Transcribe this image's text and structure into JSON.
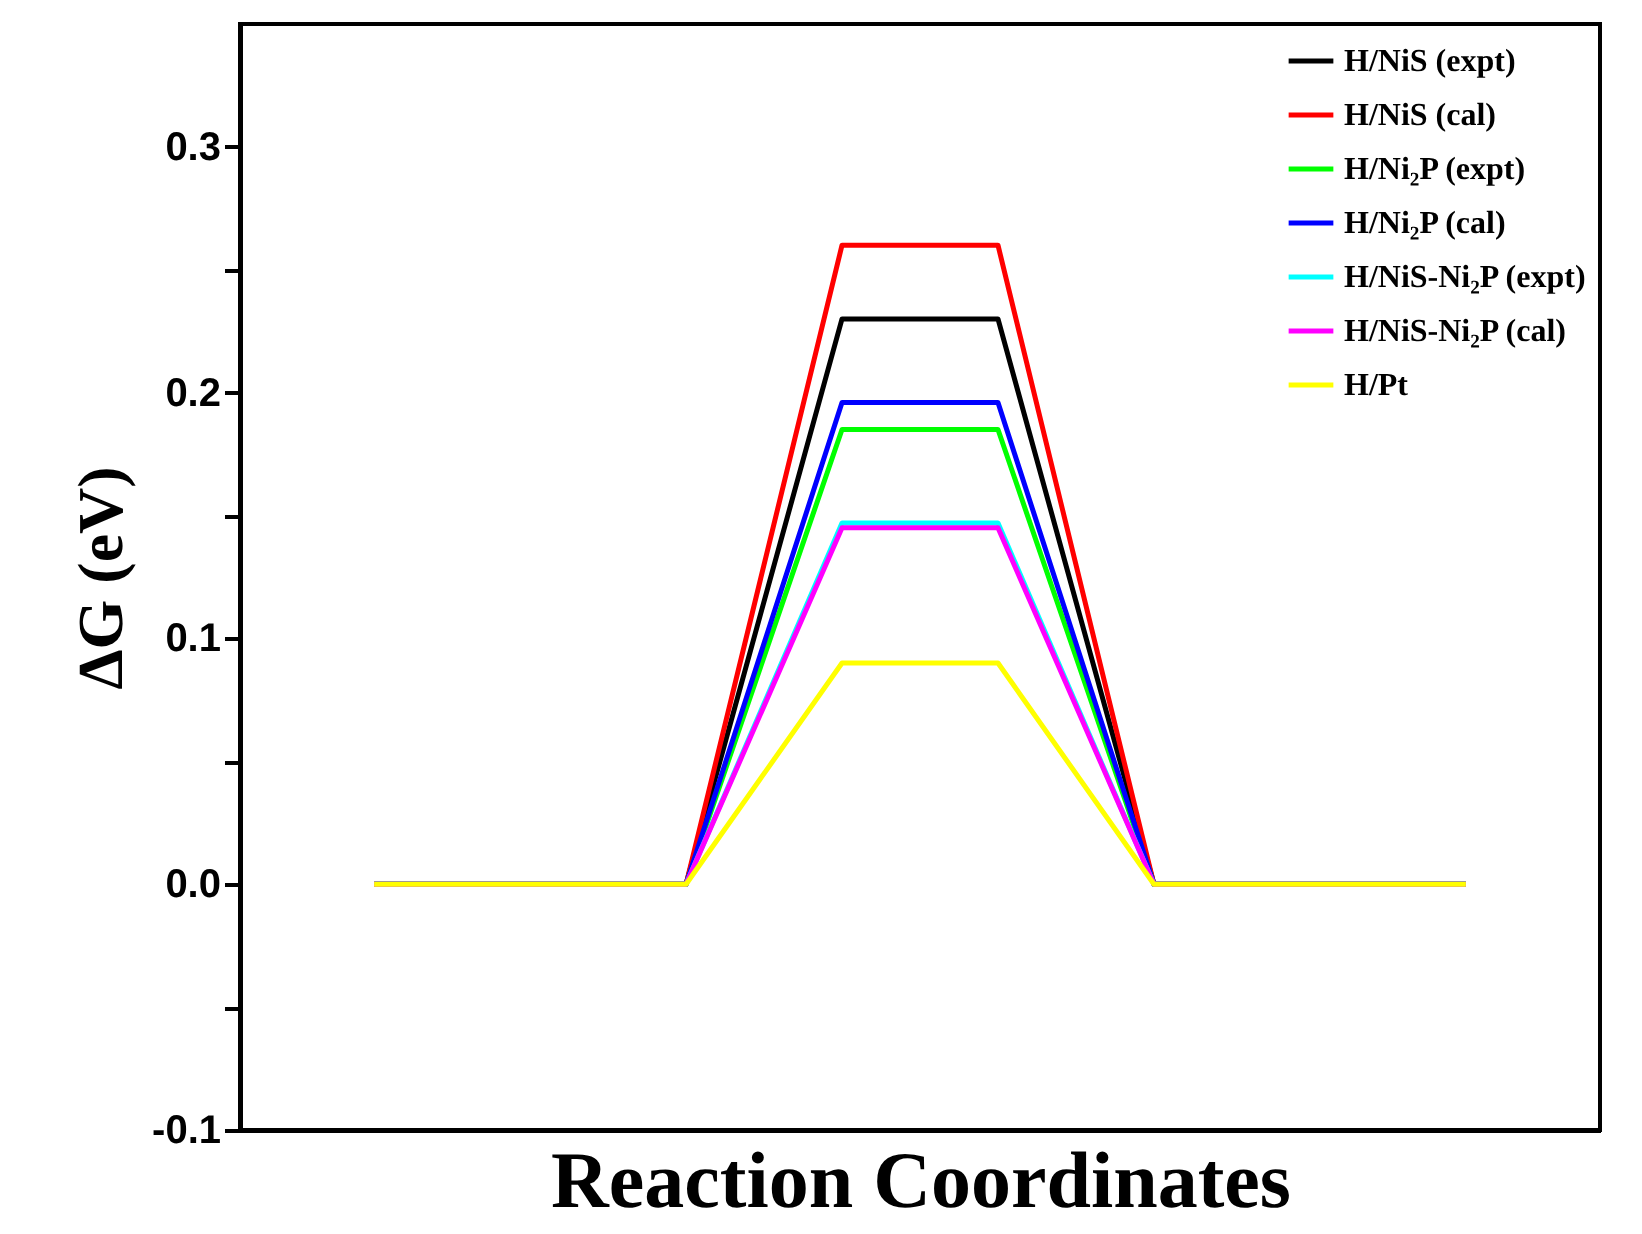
{
  "chart_data": {
    "type": "line",
    "xlabel": "Reaction Coordinates",
    "ylabel": "ΔG (eV)",
    "categories": [
      null,
      null,
      null,
      null,
      null,
      null,
      null,
      null
    ],
    "series": [
      {
        "name": "H/NiS (expt)",
        "color": "#000000",
        "values": [
          0,
          0,
          0,
          0.23,
          0.23,
          0,
          0,
          0
        ]
      },
      {
        "name": "H/NiS (cal)",
        "color": "#ff0000",
        "values": [
          0,
          0,
          0,
          0.26,
          0.26,
          0,
          0,
          0
        ]
      },
      {
        "name": "H/Ni₂P (expt)",
        "color": "#00ff00",
        "values": [
          0,
          0,
          0,
          0.185,
          0.185,
          0,
          0,
          0
        ]
      },
      {
        "name": "H/Ni₂P (cal)",
        "color": "#0000ff",
        "values": [
          0,
          0,
          0,
          0.196,
          0.196,
          0,
          0,
          0
        ]
      },
      {
        "name": "H/NiS-Ni₂P (expt)",
        "color": "#00ffff",
        "values": [
          0,
          0,
          0,
          0.147,
          0.147,
          0,
          0,
          0
        ]
      },
      {
        "name": "H/NiS-Ni₂P (cal)",
        "color": "#ff00ff",
        "values": [
          0,
          0,
          0,
          0.145,
          0.145,
          0,
          0,
          0
        ]
      },
      {
        "name": "H/Pt",
        "color": "#ffff00",
        "values": [
          0,
          0,
          0,
          0.09,
          0.09,
          0,
          0,
          0
        ]
      }
    ],
    "ylim": [
      -0.1,
      0.35
    ],
    "yticks": [
      {
        "value": -0.1,
        "label": "-0.1"
      },
      {
        "value": -0.05,
        "label": null
      },
      {
        "value": 0,
        "label": "0.0"
      },
      {
        "value": 0.05,
        "label": null
      },
      {
        "value": 0.1,
        "label": "0.1"
      },
      {
        "value": 0.15,
        "label": null
      },
      {
        "value": 0.2,
        "label": "0.2"
      },
      {
        "value": 0.25,
        "label": null
      },
      {
        "value": 0.3,
        "label": "0.3"
      }
    ],
    "legend": "top right",
    "tick_labels": "y"
  }
}
